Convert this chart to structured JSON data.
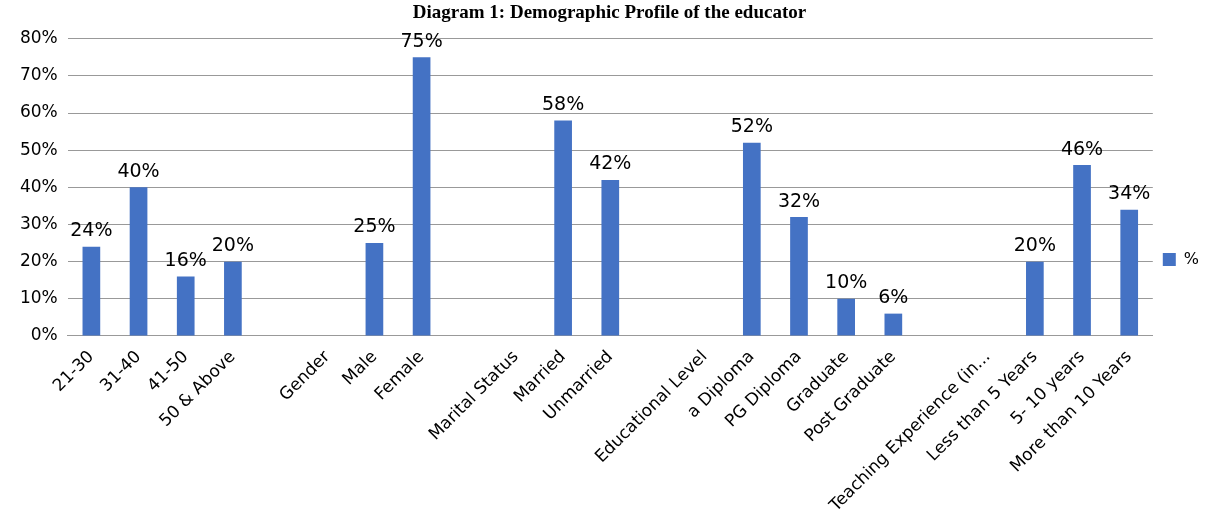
{
  "chart_data": {
    "type": "bar",
    "title": "Diagram 1: Demographic Profile of the educator",
    "categories": [
      "21-30",
      "31-40",
      "41-50",
      "50 & Above",
      null,
      "Gender",
      "Male",
      "Female",
      null,
      "Marital Status",
      "Married",
      "Unmarried",
      null,
      "Educational Level",
      "a Diploma",
      "PG Diploma",
      "Graduate",
      "Post Graduate",
      null,
      "Teaching Experience (in...",
      "Less than 5 Years",
      "5- 10 years",
      "More than 10 Years"
    ],
    "series": [
      {
        "name": "%",
        "color": "#4472c4",
        "values": [
          24,
          40,
          16,
          20,
          null,
          null,
          25,
          75,
          null,
          null,
          58,
          42,
          null,
          null,
          52,
          32,
          10,
          6,
          null,
          null,
          20,
          46,
          34
        ],
        "value_labels": [
          "24%",
          "40%",
          "16%",
          "20%",
          null,
          null,
          "25%",
          "75%",
          null,
          null,
          "58%",
          "42%",
          null,
          null,
          "52%",
          "32%",
          "10%",
          "6%",
          null,
          null,
          "20%",
          "46%",
          "34%"
        ]
      }
    ],
    "ylim": [
      0,
      80
    ],
    "yticks": [
      {
        "value": 0,
        "label": "0%"
      },
      {
        "value": 10,
        "label": "10%"
      },
      {
        "value": 20,
        "label": "20%"
      },
      {
        "value": 30,
        "label": "30%"
      },
      {
        "value": 40,
        "label": "40%"
      },
      {
        "value": 50,
        "label": "50%"
      },
      {
        "value": 60,
        "label": "60%"
      },
      {
        "value": 70,
        "label": "70%"
      },
      {
        "value": 80,
        "label": "80%"
      }
    ],
    "grid": "y",
    "legend": "right"
  }
}
